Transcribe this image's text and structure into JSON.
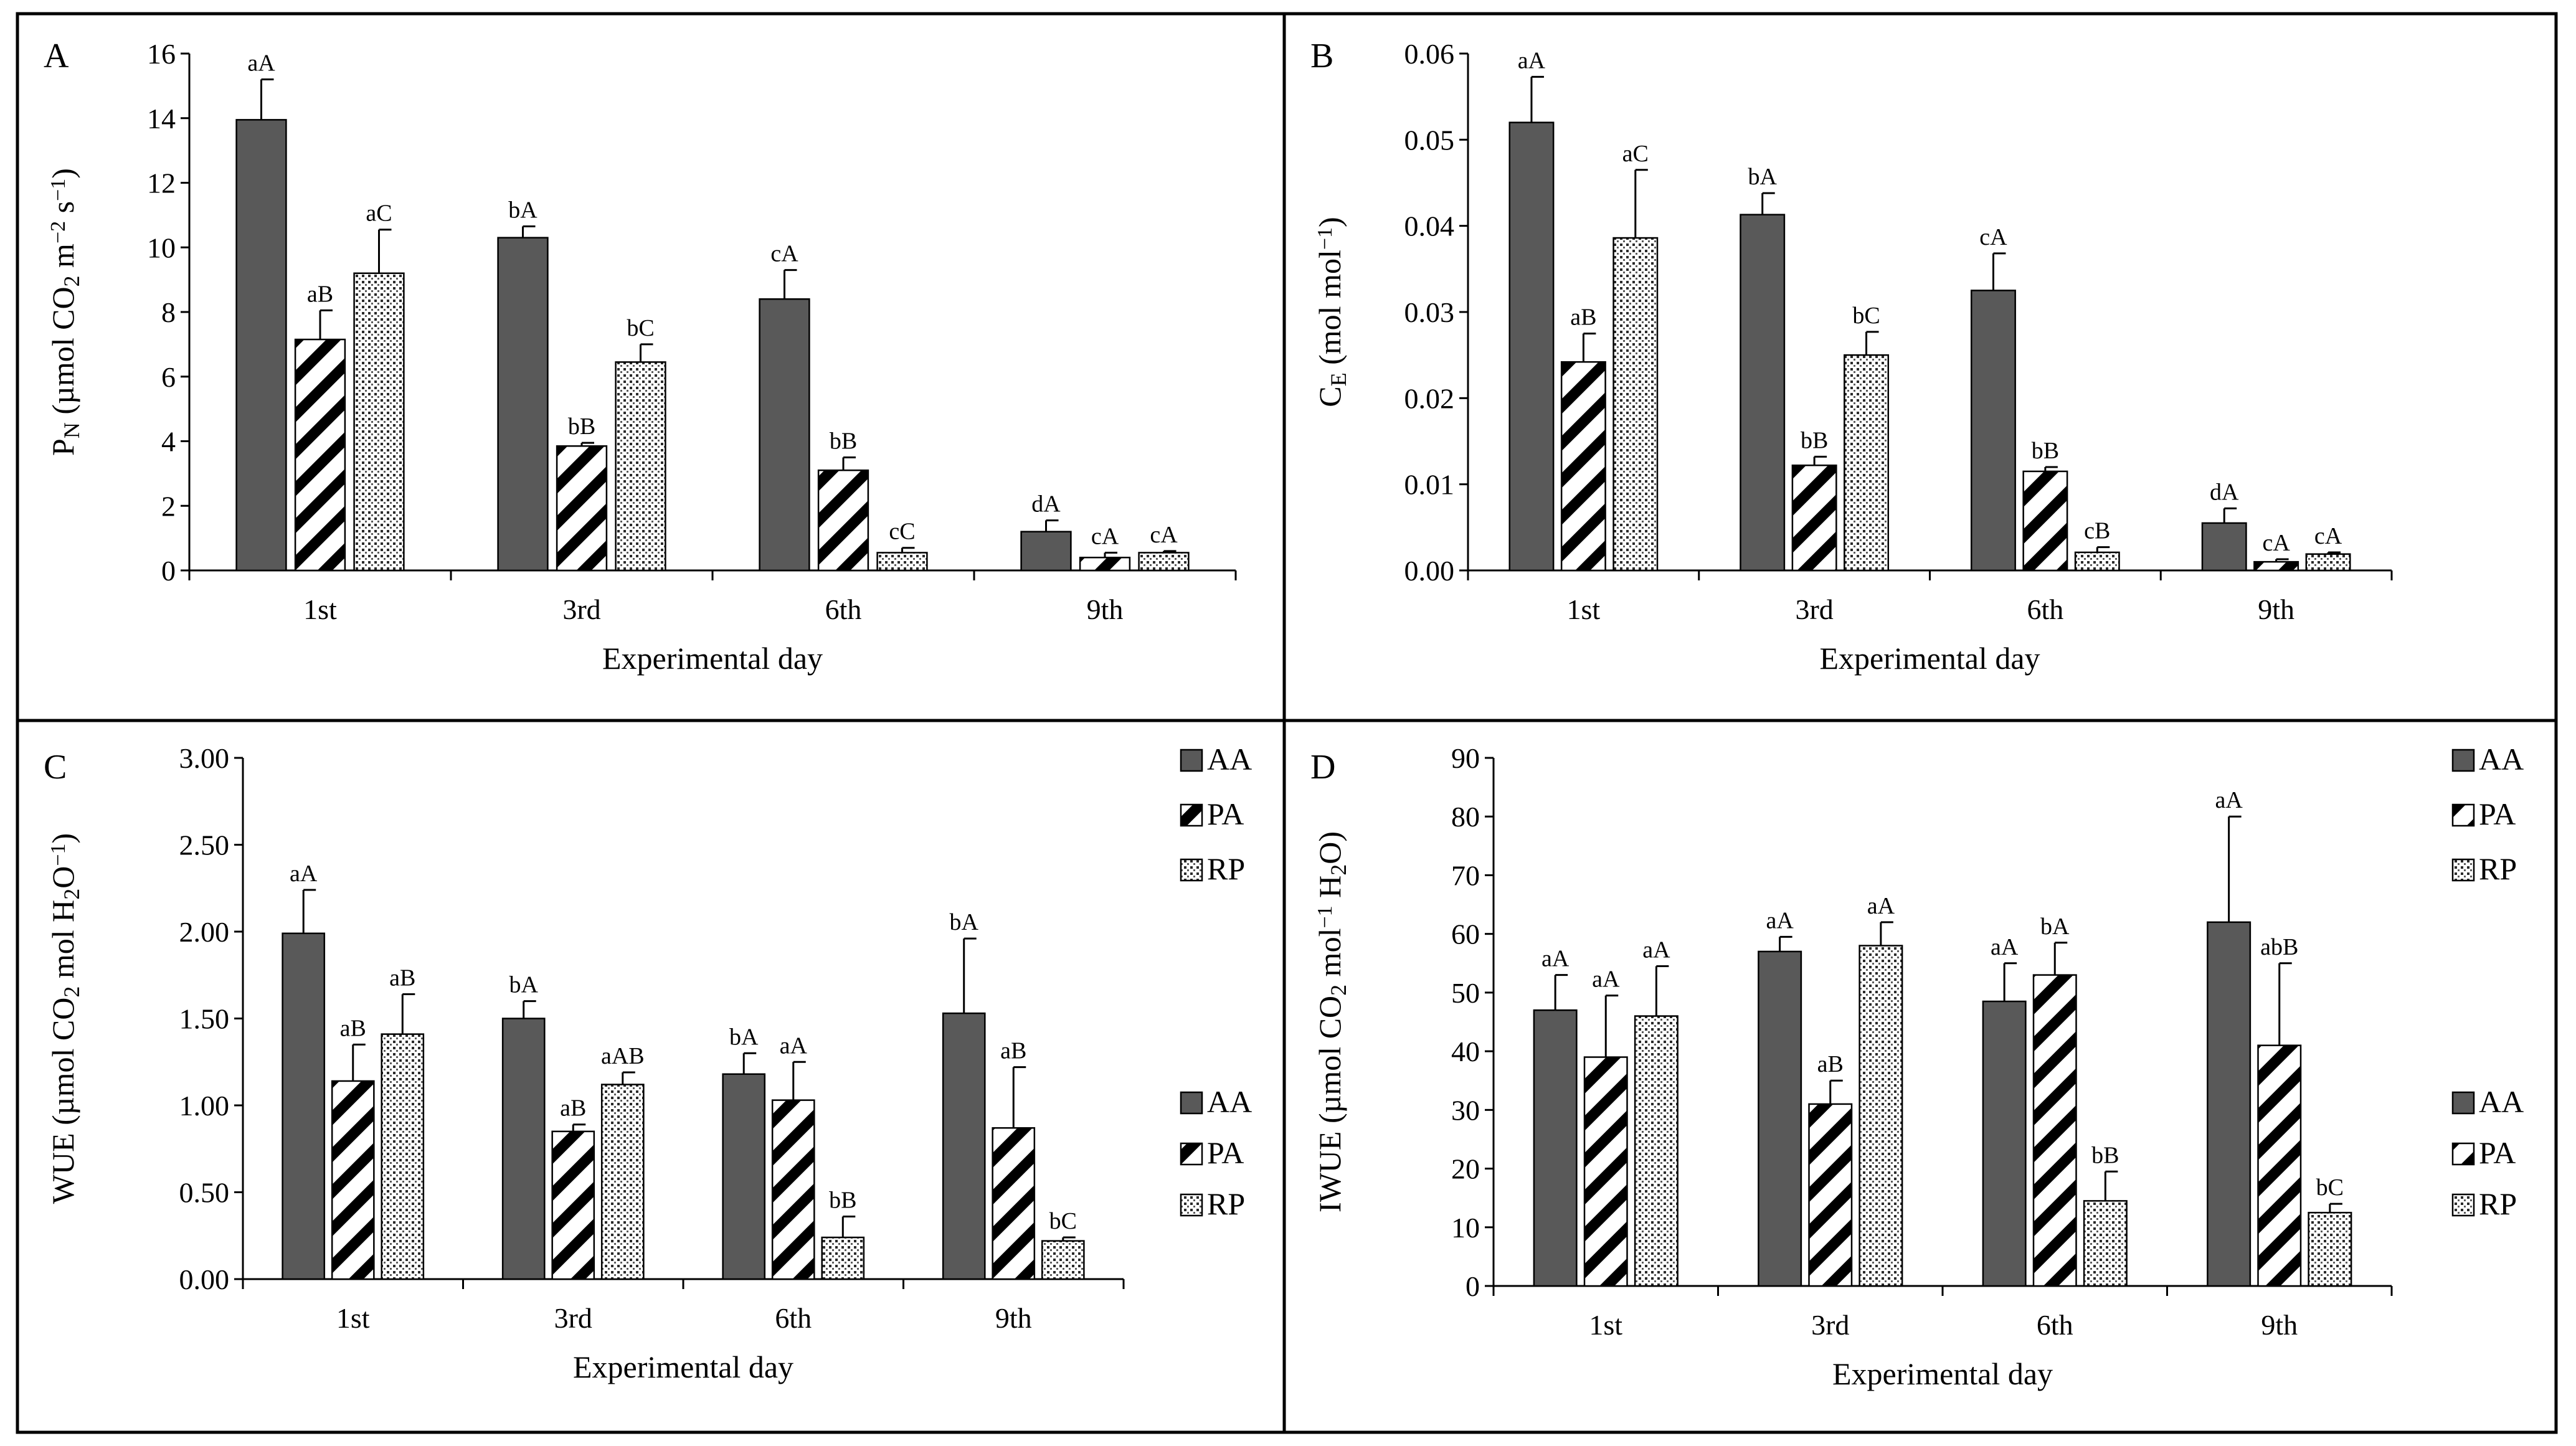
{
  "figure": {
    "background": "#ffffff",
    "frame_color": "#000000"
  },
  "legend": {
    "entries": [
      {
        "key": "AA",
        "label": "AA",
        "fill": "#595959",
        "pattern": "solid"
      },
      {
        "key": "PA",
        "label": "PA",
        "fill": "#ffffff",
        "pattern": "diagonal"
      },
      {
        "key": "RP",
        "label": "RP",
        "fill": "#ffffff",
        "pattern": "dots"
      }
    ]
  },
  "chart_data": [
    {
      "panel": "A",
      "type": "bar",
      "xlabel": "Experimental day",
      "ylabel_parts": [
        [
          "P",
          ""
        ],
        [
          "N",
          "sub"
        ],
        [
          " (µmol CO",
          ""
        ],
        [
          "2",
          "sub"
        ],
        [
          " m",
          ""
        ],
        [
          "−2",
          "sup"
        ],
        [
          " s",
          ""
        ],
        [
          "−1",
          "sup"
        ],
        [
          ")",
          ""
        ]
      ],
      "categories": [
        "1st",
        "3rd",
        "6th",
        "9th"
      ],
      "ylim": [
        0,
        16
      ],
      "yticks": [
        0,
        2,
        4,
        6,
        8,
        10,
        12,
        14,
        16
      ],
      "ytick_labels": [
        "0",
        "2",
        "4",
        "6",
        "8",
        "10",
        "12",
        "14",
        "16"
      ],
      "series": [
        {
          "name": "AA",
          "values": [
            13.95,
            10.3,
            8.4,
            1.2
          ],
          "errors": [
            1.25,
            0.35,
            0.9,
            0.35
          ],
          "labels": [
            "aA",
            "bA",
            "cA",
            "dA"
          ]
        },
        {
          "name": "PA",
          "values": [
            7.15,
            3.85,
            3.1,
            0.4
          ],
          "errors": [
            0.9,
            0.1,
            0.4,
            0.15
          ],
          "labels": [
            "aB",
            "bB",
            "bB",
            "cA"
          ]
        },
        {
          "name": "RP",
          "values": [
            9.2,
            6.45,
            0.55,
            0.55
          ],
          "errors": [
            1.35,
            0.55,
            0.15,
            0.05
          ],
          "labels": [
            "aC",
            "bC",
            "cC",
            "cA"
          ]
        }
      ]
    },
    {
      "panel": "B",
      "type": "bar",
      "xlabel": "Experimental day",
      "ylabel_parts": [
        [
          "C",
          ""
        ],
        [
          "E",
          "sub"
        ],
        [
          " (mol mol",
          ""
        ],
        [
          "−1",
          "sup"
        ],
        [
          ")",
          ""
        ]
      ],
      "categories": [
        "1st",
        "3rd",
        "6th",
        "9th"
      ],
      "ylim": [
        0,
        0.06
      ],
      "yticks": [
        0,
        0.01,
        0.02,
        0.03,
        0.04,
        0.05,
        0.06
      ],
      "ytick_labels": [
        "0.00",
        "0.01",
        "0.02",
        "0.03",
        "0.04",
        "0.05",
        "0.06"
      ],
      "series": [
        {
          "name": "AA",
          "values": [
            0.052,
            0.0413,
            0.0325,
            0.0055
          ],
          "errors": [
            0.0053,
            0.0025,
            0.0043,
            0.0017
          ],
          "labels": [
            "aA",
            "bA",
            "cA",
            "dA"
          ]
        },
        {
          "name": "PA",
          "values": [
            0.0242,
            0.0122,
            0.0115,
            0.001
          ],
          "errors": [
            0.0033,
            0.001,
            0.0005,
            0.0003
          ],
          "labels": [
            "aB",
            "bB",
            "bB",
            "cA"
          ]
        },
        {
          "name": "RP",
          "values": [
            0.0386,
            0.025,
            0.0021,
            0.0019
          ],
          "errors": [
            0.0079,
            0.0027,
            0.0006,
            0.0002
          ],
          "labels": [
            "aC",
            "bC",
            "cB",
            "cA"
          ]
        }
      ]
    },
    {
      "panel": "C",
      "type": "bar",
      "xlabel": "Experimental day",
      "ylabel_parts": [
        [
          "WUE (µmol CO",
          ""
        ],
        [
          "2",
          "sub"
        ],
        [
          " mol H",
          ""
        ],
        [
          "2",
          "sub"
        ],
        [
          "O",
          ""
        ],
        [
          "−1",
          "sup"
        ],
        [
          ")",
          ""
        ]
      ],
      "categories": [
        "1st",
        "3rd",
        "6th",
        "9th"
      ],
      "ylim": [
        0,
        3
      ],
      "yticks": [
        0,
        0.5,
        1,
        1.5,
        2,
        2.5,
        3
      ],
      "ytick_labels": [
        "0.00",
        "0.50",
        "1.00",
        "1.50",
        "2.00",
        "2.50",
        "3.00"
      ],
      "series": [
        {
          "name": "AA",
          "values": [
            1.99,
            1.5,
            1.18,
            1.53
          ],
          "errors": [
            0.25,
            0.1,
            0.12,
            0.43
          ],
          "labels": [
            "aA",
            "bA",
            "bA",
            "bA"
          ]
        },
        {
          "name": "PA",
          "values": [
            1.14,
            0.85,
            1.03,
            0.87
          ],
          "errors": [
            0.21,
            0.04,
            0.22,
            0.35
          ],
          "labels": [
            "aB",
            "aB",
            "aA",
            "aB"
          ]
        },
        {
          "name": "RP",
          "values": [
            1.41,
            1.12,
            0.24,
            0.22
          ],
          "errors": [
            0.23,
            0.07,
            0.12,
            0.02
          ],
          "labels": [
            "aB",
            "aAB",
            "bB",
            "bC"
          ]
        }
      ]
    },
    {
      "panel": "D",
      "type": "bar",
      "xlabel": "Experimental day",
      "ylabel_parts": [
        [
          "IWUE  (µmol CO",
          ""
        ],
        [
          "2",
          "sub"
        ],
        [
          " mol",
          ""
        ],
        [
          "−1",
          "sup"
        ],
        [
          " H",
          ""
        ],
        [
          "2",
          "sub"
        ],
        [
          "O)",
          ""
        ]
      ],
      "categories": [
        "1st",
        "3rd",
        "6th",
        "9th"
      ],
      "ylim": [
        0,
        90
      ],
      "yticks": [
        0,
        10,
        20,
        30,
        40,
        50,
        60,
        70,
        80,
        90
      ],
      "ytick_labels": [
        "0",
        "10",
        "20",
        "30",
        "40",
        "50",
        "60",
        "70",
        "80",
        "90"
      ],
      "series": [
        {
          "name": "AA",
          "values": [
            47,
            57,
            48.5,
            62
          ],
          "errors": [
            6,
            2.5,
            6.5,
            18
          ],
          "labels": [
            "aA",
            "aA",
            "aA",
            "aA"
          ]
        },
        {
          "name": "PA",
          "values": [
            39,
            31,
            53,
            41
          ],
          "errors": [
            10.5,
            4,
            5.5,
            14
          ],
          "labels": [
            "aA",
            "aB",
            "bA",
            "abB"
          ]
        },
        {
          "name": "RP",
          "values": [
            46,
            58,
            14.5,
            12.5
          ],
          "errors": [
            8.5,
            4,
            5,
            1.5
          ],
          "labels": [
            "aA",
            "aA",
            "bB",
            "bC"
          ]
        }
      ]
    }
  ]
}
